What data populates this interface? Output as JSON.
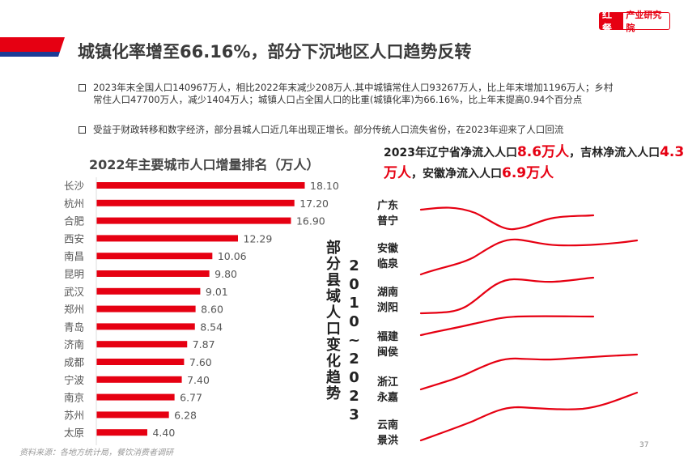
{
  "brand": {
    "logo_mark": "红餐",
    "logo_text": "产业研究院",
    "accent": "#e60012",
    "stripe": "#1d3c96"
  },
  "title": "城镇化率增至66.16%，部分下沉地区人口趋势反转",
  "bullets": [
    "2023年末全国人口140967万人，相比2022年末减少208万人.其中城镇常住人口93267万人，比上年末增加1196万人；乡村常住人口47700万人，减少1404万人；城镇人口占全国人口的比重(城镇化率)为66.16%，比上年末提高0.94个百分点",
    "受益于财政转移和数字经济，部分县城人口近几年出现正增长。部分传统人口流失省份，在2023年迎来了人口回流"
  ],
  "chart_data": {
    "type": "bar",
    "orientation": "horizontal",
    "title": "2022年主要城市人口增量排名（万人）",
    "categories": [
      "长沙",
      "杭州",
      "合肥",
      "西安",
      "南昌",
      "昆明",
      "武汉",
      "郑州",
      "青岛",
      "济南",
      "成都",
      "宁波",
      "南京",
      "苏州",
      "太原"
    ],
    "values": [
      18.1,
      17.2,
      16.9,
      12.29,
      10.06,
      9.8,
      9.01,
      8.6,
      8.54,
      7.87,
      7.6,
      7.4,
      6.77,
      6.28,
      4.4
    ],
    "value_labels": [
      "18.10",
      "17.20",
      "16.90",
      "12.29",
      "10.06",
      "9.80",
      "9.01",
      "8.60",
      "8.54",
      "7.87",
      "7.60",
      "7.40",
      "6.77",
      "6.28",
      "4.40"
    ],
    "xlim": [
      0,
      18.1
    ],
    "grid": false,
    "bar_color": "#e60012"
  },
  "trend": {
    "title_vertical": "部分县域人口变化趋势",
    "years_vertical": "2010~2023",
    "headline": {
      "p1": "2023年辽宁省净流入人口",
      "v1": "8.6万人",
      "p2": "，吉林净流入人口",
      "v2": "4.3万人",
      "p3": "，安徽净流入人口",
      "v3": "6.9万人"
    },
    "places": [
      {
        "province": "广东",
        "county": "普宁"
      },
      {
        "province": "安徽",
        "county": "临泉"
      },
      {
        "province": "湖南",
        "county": "浏阳"
      },
      {
        "province": "福建",
        "county": "闽侯"
      },
      {
        "province": "浙江",
        "county": "永嘉"
      },
      {
        "province": "云南",
        "county": "景洪"
      }
    ],
    "line_color": "#e60012"
  },
  "source": "资料来源：各地方统计局，餐饮消费者调研",
  "page_number": "37"
}
